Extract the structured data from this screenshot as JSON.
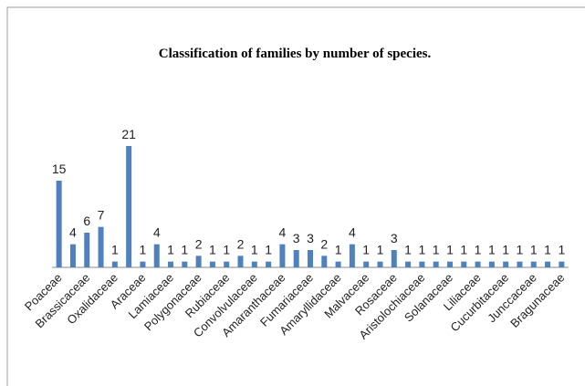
{
  "chart_data": {
    "type": "bar",
    "title": "Classification of families by number of species.",
    "categories": [
      "Poaceae",
      null,
      "Brassicaceae",
      null,
      "Oxalidaceae",
      null,
      "Araceae",
      null,
      "Lamiaceae",
      null,
      "Polygonaceae",
      null,
      "Rubiaceae",
      null,
      "Convolvulaceae",
      null,
      "Amaranthaceae",
      null,
      "Fumariaceae",
      null,
      "Amaryllidaceae",
      null,
      "Malvaceae",
      null,
      "Rosaceae",
      null,
      "Aristolochiaceae",
      null,
      "Solanaceae",
      null,
      "Liliaceae",
      null,
      "Cucurbitaceae",
      null,
      "Junccaceae",
      null,
      "Bragunaceae"
    ],
    "values": [
      15,
      4,
      6,
      7,
      1,
      21,
      1,
      4,
      1,
      1,
      2,
      1,
      1,
      2,
      1,
      1,
      4,
      3,
      3,
      2,
      1,
      4,
      1,
      1,
      3,
      1,
      1,
      1,
      1,
      1,
      1,
      1,
      1,
      1,
      1,
      1,
      1
    ],
    "color": "#4f81bd"
  }
}
